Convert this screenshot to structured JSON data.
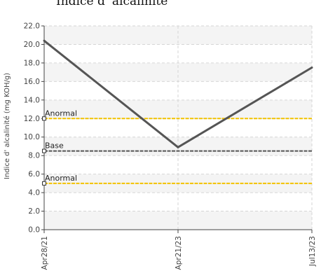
{
  "chart_data": {
    "type": "line",
    "title": "Indice d' alcalinité",
    "xlabel": "",
    "ylabel": "Indice d' alcalinité (mg KOH/g)",
    "ylim": [
      0,
      22
    ],
    "yticks": [
      0,
      2,
      4,
      6,
      8,
      10,
      12,
      14,
      16,
      18,
      20,
      22
    ],
    "ytick_labels": [
      "0.0",
      "2.0",
      "4.0",
      "6.0",
      "8.0",
      "10.0",
      "12.0",
      "14.0",
      "16.0",
      "18.0",
      "20.0",
      "22.0"
    ],
    "x_categories": [
      "Apr28/21",
      "Apr21/23",
      "Jul13/23"
    ],
    "series": [
      {
        "values": [
          20.4,
          8.9,
          17.5
        ],
        "color": "#555555"
      }
    ],
    "reference_lines": [
      {
        "label": "Anormal",
        "value": 12,
        "color": "#f2c200"
      },
      {
        "label": "Base",
        "value": 8.5,
        "color": "#555555"
      },
      {
        "label": "Anormal",
        "value": 5,
        "color": "#f2c200"
      }
    ],
    "grid": true,
    "band_colors": [
      "#f4f4f4",
      "#ffffff"
    ]
  }
}
